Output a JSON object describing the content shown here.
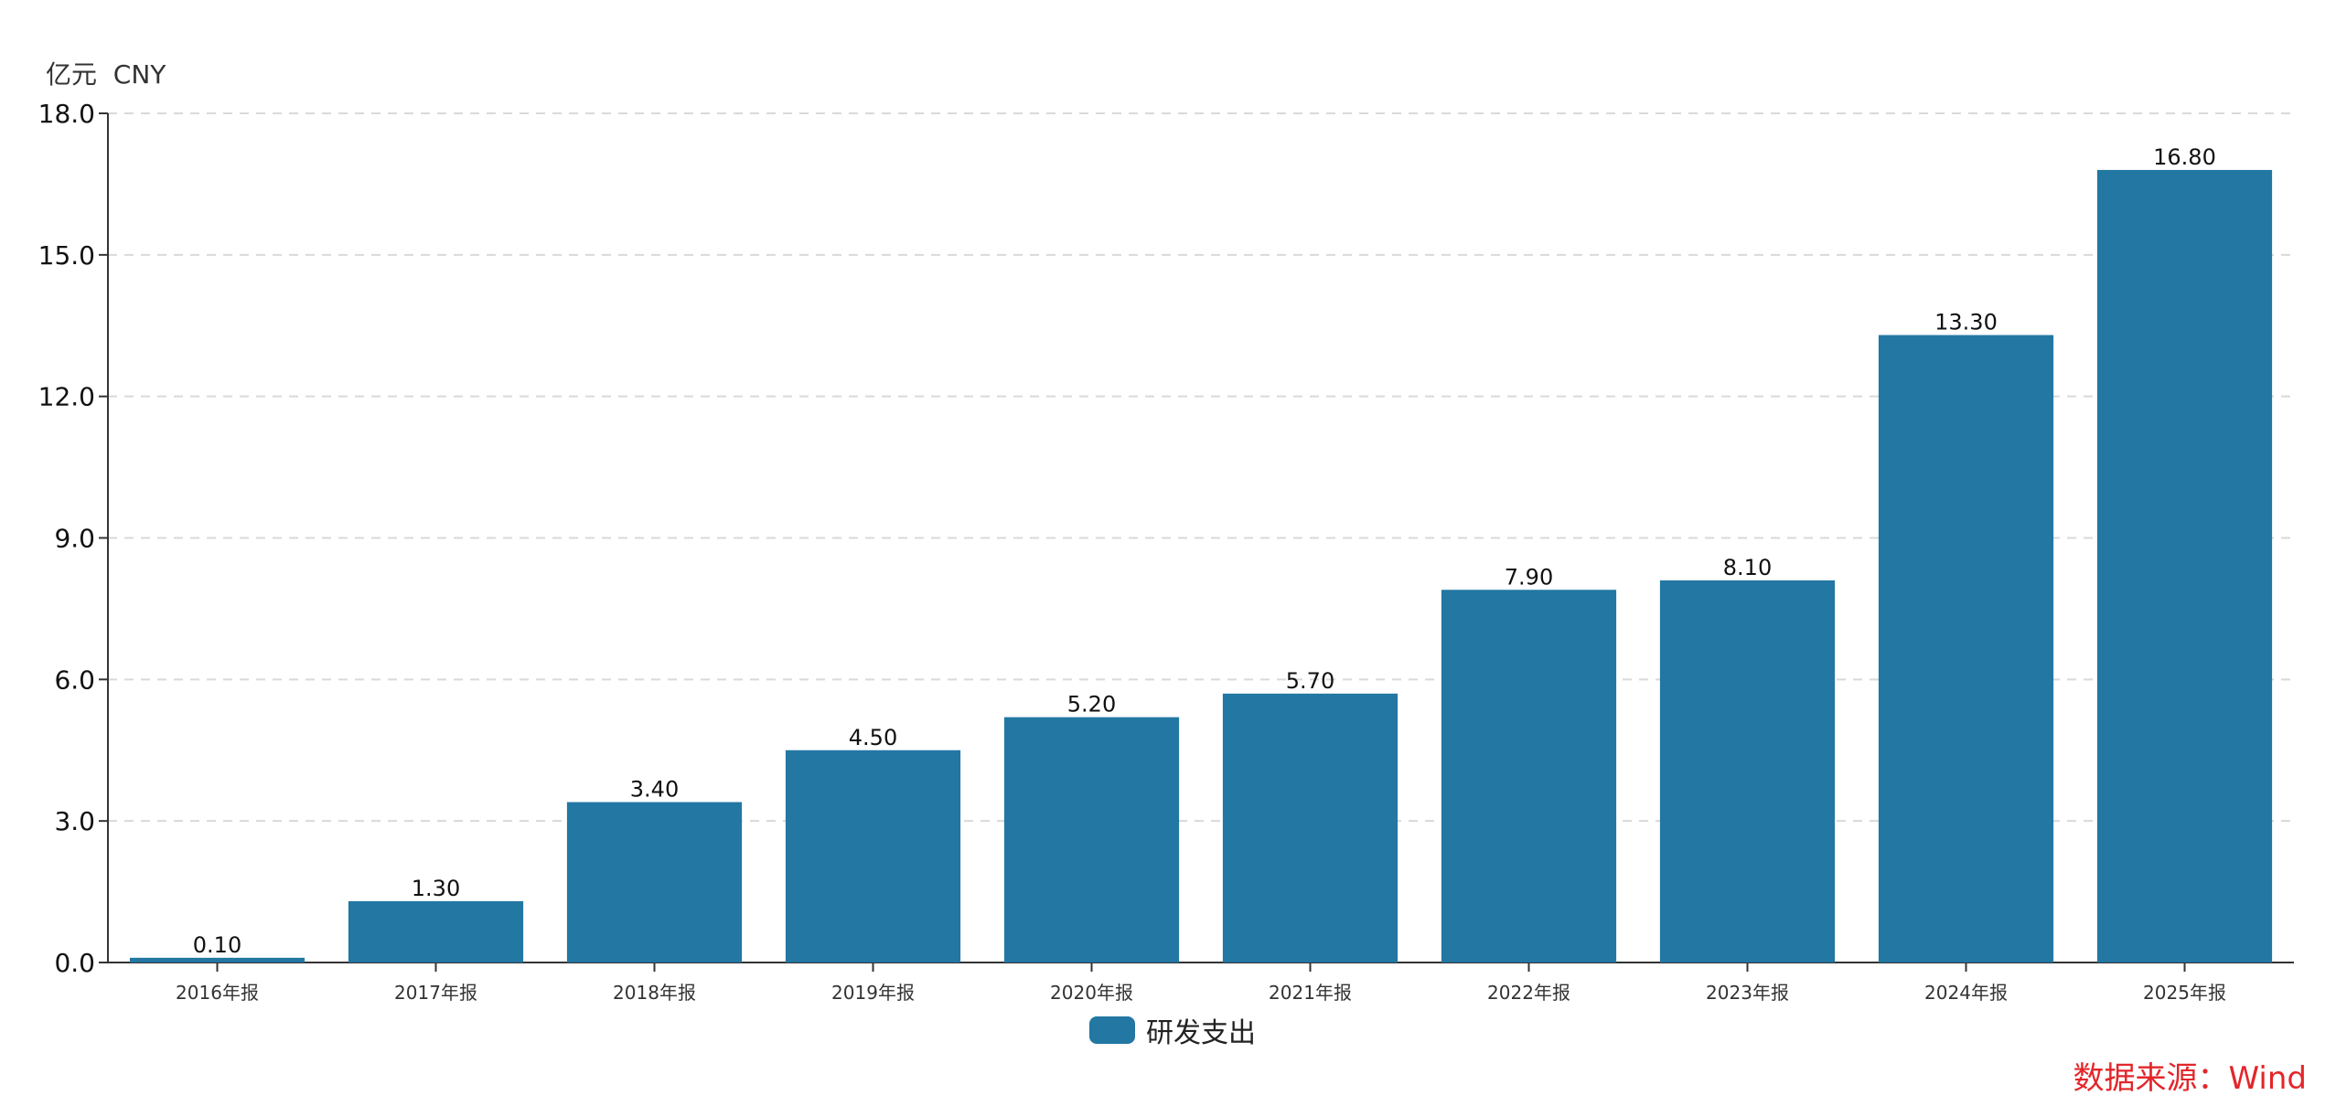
{
  "unit_label": "亿元  CNY",
  "legend": {
    "label": "研发支出",
    "color": "#2277a3"
  },
  "source": "数据来源：Wind",
  "chart_data": {
    "type": "bar",
    "categories": [
      "2016年报",
      "2017年报",
      "2018年报",
      "2019年报",
      "2020年报",
      "2021年报",
      "2022年报",
      "2023年报",
      "2024年报",
      "2025年报"
    ],
    "series": [
      {
        "name": "研发支出",
        "values": [
          0.1,
          1.3,
          3.4,
          4.5,
          5.2,
          5.7,
          7.9,
          8.1,
          13.3,
          16.8
        ]
      }
    ],
    "data_labels": [
      "0.10",
      "1.30",
      "3.40",
      "4.50",
      "5.20",
      "5.70",
      "7.90",
      "8.10",
      "13.30",
      "16.80"
    ],
    "y_ticks": [
      "0.0",
      "3.0",
      "6.0",
      "9.0",
      "12.0",
      "15.0",
      "18.0"
    ],
    "ylim": [
      0,
      18
    ],
    "ylabel": "亿元  CNY",
    "xlabel": "",
    "grid": true,
    "legend_position": "bottom-center",
    "bar_color": "#2277a3"
  }
}
